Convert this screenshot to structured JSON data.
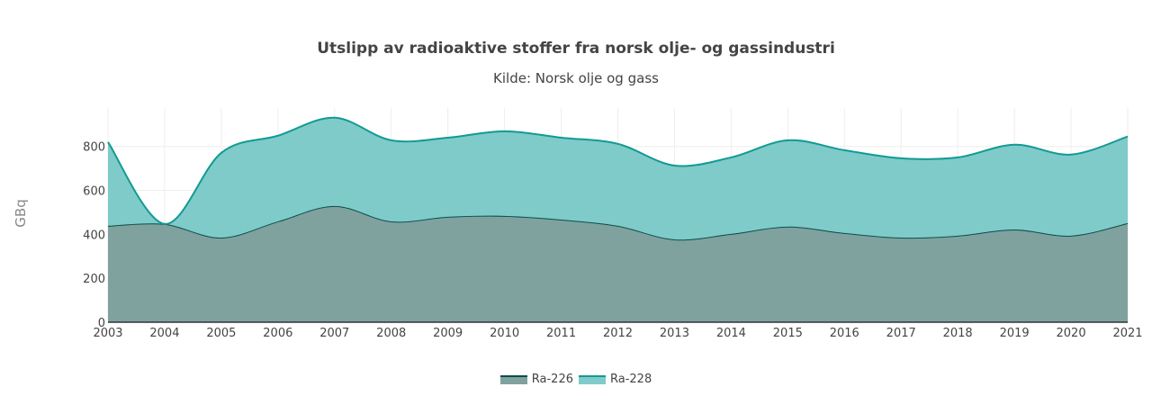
{
  "chart_data": {
    "type": "area",
    "stacked": true,
    "title": "Utslipp av radioaktive stoffer fra norsk olje- og gassindustri",
    "subtitle": "Kilde: Norsk olje og gass",
    "xlabel": "",
    "ylabel": "GBq",
    "ylim": [
      0,
      975
    ],
    "yticks": [
      0,
      200,
      400,
      600,
      800
    ],
    "grid": true,
    "legend_position": "bottom",
    "x": [
      2003,
      2004,
      2005,
      2006,
      2007,
      2008,
      2009,
      2010,
      2011,
      2012,
      2013,
      2014,
      2015,
      2016,
      2017,
      2018,
      2019,
      2020,
      2021
    ],
    "series": [
      {
        "name": "Ra-226",
        "line_color": "#0b4d4a",
        "fill_color": "#7fa29f",
        "values": [
          439,
          447,
          385,
          459,
          529,
          459,
          480,
          484,
          467,
          439,
          377,
          402,
          435,
          406,
          385,
          394,
          422,
          394,
          451
        ]
      },
      {
        "name": "Ra-228",
        "line_color": "#129a93",
        "fill_color": "#7fcbc9",
        "values": [
          381,
          0,
          386,
          390,
          402,
          369,
          360,
          385,
          373,
          373,
          336,
          348,
          393,
          377,
          361,
          356,
          386,
          369,
          394
        ]
      }
    ]
  }
}
